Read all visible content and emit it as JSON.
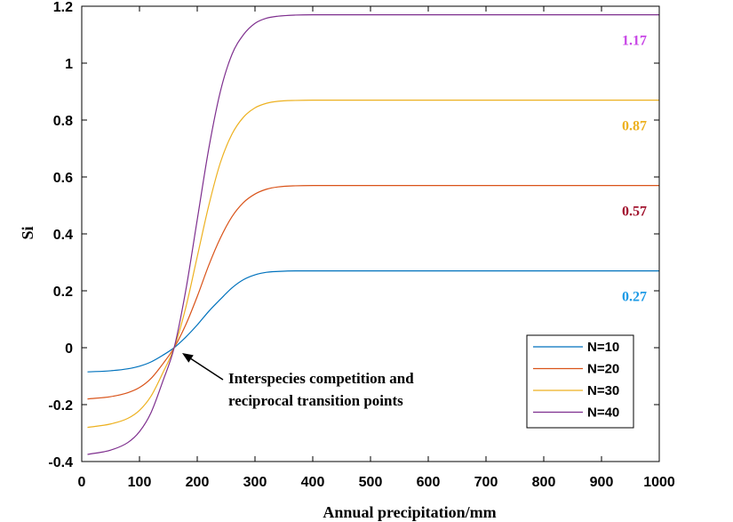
{
  "chart_data": {
    "type": "line",
    "xlabel": "Annual precipitation/mm",
    "ylabel": "Si",
    "xlim": [
      0,
      1000
    ],
    "ylim": [
      -0.4,
      1.2
    ],
    "xticks": [
      0,
      100,
      200,
      300,
      400,
      500,
      600,
      700,
      800,
      900,
      1000
    ],
    "yticks": [
      -0.4,
      -0.2,
      0,
      0.2,
      0.4,
      0.6,
      0.8,
      1,
      1.2
    ],
    "xtick_labels": [
      "0",
      "100",
      "200",
      "300",
      "400",
      "500",
      "600",
      "700",
      "800",
      "900",
      "1000"
    ],
    "ytick_labels": [
      "-0.4",
      "-0.2",
      "0",
      "0.2",
      "0.4",
      "0.6",
      "0.8",
      "1",
      "1.2"
    ],
    "grid": false,
    "legend_position": "bottom-right",
    "crossing_point": {
      "x": 160,
      "y": 0
    },
    "annotation": {
      "lines": [
        "Interspecies competition and",
        "reciprocal transition points"
      ],
      "arrow_to": {
        "x": 160,
        "y": 0
      },
      "text_at": {
        "x": 255,
        "y": -0.115
      }
    },
    "series": [
      {
        "name": "N=10",
        "color": "#0072BD",
        "y_start": -0.085,
        "y_end": 0.27,
        "end_label": "0.27",
        "end_label_color": "#1E9BE6",
        "points": [
          [
            10,
            -0.085
          ],
          [
            50,
            -0.081
          ],
          [
            80,
            -0.074
          ],
          [
            100,
            -0.065
          ],
          [
            120,
            -0.05
          ],
          [
            140,
            -0.027
          ],
          [
            160,
            0
          ],
          [
            180,
            0.037
          ],
          [
            200,
            0.08
          ],
          [
            220,
            0.128
          ],
          [
            240,
            0.17
          ],
          [
            260,
            0.21
          ],
          [
            280,
            0.239
          ],
          [
            300,
            0.256
          ],
          [
            320,
            0.265
          ],
          [
            340,
            0.268
          ],
          [
            370,
            0.27
          ],
          [
            400,
            0.27
          ],
          [
            1000,
            0.27
          ]
        ]
      },
      {
        "name": "N=20",
        "color": "#D95319",
        "y_start": -0.18,
        "y_end": 0.57,
        "end_label": "0.57",
        "end_label_color": "#A2142F",
        "points": [
          [
            10,
            -0.18
          ],
          [
            50,
            -0.172
          ],
          [
            80,
            -0.158
          ],
          [
            100,
            -0.14
          ],
          [
            120,
            -0.108
          ],
          [
            140,
            -0.058
          ],
          [
            160,
            0
          ],
          [
            180,
            0.08
          ],
          [
            200,
            0.18
          ],
          [
            220,
            0.29
          ],
          [
            240,
            0.385
          ],
          [
            260,
            0.46
          ],
          [
            280,
            0.51
          ],
          [
            300,
            0.54
          ],
          [
            320,
            0.557
          ],
          [
            340,
            0.565
          ],
          [
            370,
            0.569
          ],
          [
            400,
            0.57
          ],
          [
            1000,
            0.57
          ]
        ]
      },
      {
        "name": "N=30",
        "color": "#EDB120",
        "y_start": -0.28,
        "y_end": 0.87,
        "end_label": "0.87",
        "end_label_color": "#EDB120",
        "points": [
          [
            10,
            -0.28
          ],
          [
            50,
            -0.268
          ],
          [
            80,
            -0.248
          ],
          [
            100,
            -0.22
          ],
          [
            120,
            -0.17
          ],
          [
            140,
            -0.09
          ],
          [
            160,
            0
          ],
          [
            180,
            0.14
          ],
          [
            200,
            0.32
          ],
          [
            220,
            0.5
          ],
          [
            240,
            0.65
          ],
          [
            260,
            0.75
          ],
          [
            280,
            0.81
          ],
          [
            300,
            0.843
          ],
          [
            320,
            0.859
          ],
          [
            340,
            0.866
          ],
          [
            370,
            0.869
          ],
          [
            400,
            0.87
          ],
          [
            1000,
            0.87
          ]
        ]
      },
      {
        "name": "N=40",
        "color": "#7E2F8E",
        "y_start": -0.375,
        "y_end": 1.17,
        "end_label": "1.17",
        "end_label_color": "#C846E6",
        "points": [
          [
            10,
            -0.375
          ],
          [
            50,
            -0.36
          ],
          [
            80,
            -0.333
          ],
          [
            100,
            -0.295
          ],
          [
            120,
            -0.228
          ],
          [
            140,
            -0.12
          ],
          [
            160,
            0
          ],
          [
            180,
            0.2
          ],
          [
            200,
            0.45
          ],
          [
            220,
            0.7
          ],
          [
            240,
            0.9
          ],
          [
            260,
            1.03
          ],
          [
            280,
            1.1
          ],
          [
            300,
            1.14
          ],
          [
            320,
            1.158
          ],
          [
            340,
            1.165
          ],
          [
            370,
            1.169
          ],
          [
            400,
            1.17
          ],
          [
            1000,
            1.17
          ]
        ]
      }
    ]
  }
}
